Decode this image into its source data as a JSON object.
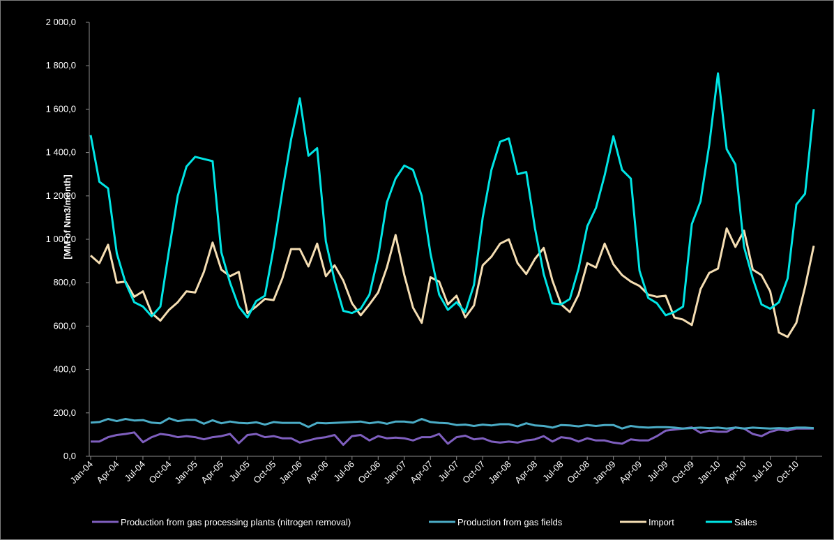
{
  "chart_data": {
    "type": "line",
    "ylabel": "[MM of Nm3/month]",
    "xlabel": "",
    "title": "",
    "ylim": [
      0,
      2000
    ],
    "y_ticks": [
      "0,0",
      "200,0",
      "400,0",
      "600,0",
      "800,0",
      "1 000,0",
      "1 200,0",
      "1 400,0",
      "1 600,0",
      "1 800,0",
      "2 000,0"
    ],
    "x_tick_labels": [
      "Jan-04",
      "Apr-04",
      "Jul-04",
      "Oct-04",
      "Jan-05",
      "Apr-05",
      "Jul-05",
      "Oct-05",
      "Jan-06",
      "Apr-06",
      "Jul-06",
      "Oct-06",
      "Jan-07",
      "Apr-07",
      "Jul-07",
      "Oct-07",
      "Jan-08",
      "Apr-08",
      "Jul-08",
      "Oct-08",
      "Jan-09",
      "Apr-09",
      "Jul-09",
      "Oct-09",
      "Jan-10",
      "Apr-10",
      "Jul-10",
      "Oct-10"
    ],
    "x_start": "Jan-04",
    "x_end": "Dec-10",
    "grid": false,
    "legend_position": "bottom",
    "series": [
      {
        "name": "Production from gas processing plants (nitrogen removal)",
        "color": "#7f5fbf",
        "values": [
          68,
          68,
          88,
          98,
          103,
          110,
          65,
          88,
          103,
          98,
          88,
          93,
          88,
          78,
          88,
          93,
          103,
          60,
          98,
          103,
          88,
          93,
          83,
          83,
          63,
          73,
          83,
          88,
          98,
          53,
          93,
          98,
          73,
          93,
          83,
          86,
          83,
          73,
          88,
          88,
          103,
          58,
          88,
          95,
          78,
          83,
          68,
          63,
          68,
          63,
          73,
          78,
          93,
          68,
          88,
          83,
          68,
          83,
          73,
          73,
          63,
          58,
          78,
          73,
          73,
          93,
          118,
          123,
          128,
          133,
          108,
          118,
          113,
          113,
          133,
          128,
          103,
          93,
          113,
          123,
          118,
          128,
          128,
          128
        ]
      },
      {
        "name": "Production from gas fields",
        "color": "#4bacc6",
        "values": [
          155,
          158,
          172,
          162,
          172,
          165,
          167,
          155,
          152,
          175,
          162,
          168,
          168,
          150,
          166,
          152,
          160,
          154,
          152,
          157,
          146,
          158,
          154,
          154,
          154,
          135,
          154,
          152,
          154,
          156,
          158,
          160,
          152,
          158,
          150,
          160,
          160,
          155,
          172,
          158,
          154,
          152,
          144,
          146,
          140,
          146,
          142,
          148,
          148,
          138,
          152,
          142,
          140,
          132,
          144,
          142,
          138,
          144,
          140,
          144,
          144,
          128,
          140,
          134,
          132,
          134,
          134,
          132,
          128,
          130,
          132,
          130,
          132,
          128,
          132,
          128,
          132,
          130,
          128,
          130,
          128,
          132,
          132,
          130
        ]
      },
      {
        "name": "Import",
        "color": "#f5deb3",
        "values": [
          925,
          890,
          975,
          800,
          805,
          735,
          760,
          660,
          625,
          675,
          710,
          760,
          755,
          850,
          985,
          860,
          830,
          850,
          660,
          690,
          725,
          720,
          820,
          955,
          955,
          875,
          980,
          830,
          880,
          810,
          705,
          650,
          700,
          755,
          870,
          1020,
          835,
          685,
          615,
          825,
          805,
          700,
          740,
          640,
          695,
          880,
          920,
          980,
          1000,
          890,
          840,
          910,
          960,
          810,
          700,
          665,
          745,
          890,
          870,
          980,
          885,
          835,
          805,
          785,
          745,
          735,
          740,
          640,
          630,
          605,
          770,
          845,
          865,
          1050,
          965,
          1040,
          860,
          835,
          760,
          570,
          550,
          615,
          780,
          970
        ]
      },
      {
        "name": "Sales",
        "color": "#00e5e5",
        "values": [
          1480,
          1265,
          1235,
          935,
          800,
          710,
          690,
          645,
          690,
          950,
          1200,
          1335,
          1380,
          1370,
          1360,
          940,
          800,
          690,
          640,
          715,
          740,
          960,
          1220,
          1460,
          1650,
          1385,
          1420,
          990,
          810,
          670,
          660,
          680,
          745,
          920,
          1170,
          1280,
          1340,
          1320,
          1200,
          935,
          745,
          675,
          710,
          665,
          790,
          1100,
          1320,
          1450,
          1465,
          1300,
          1310,
          1050,
          840,
          705,
          700,
          725,
          865,
          1060,
          1145,
          1295,
          1475,
          1320,
          1280,
          855,
          730,
          705,
          650,
          665,
          690,
          1070,
          1175,
          1435,
          1765,
          1415,
          1345,
          965,
          820,
          700,
          680,
          710,
          820,
          1160,
          1210,
          1600
        ]
      }
    ]
  }
}
